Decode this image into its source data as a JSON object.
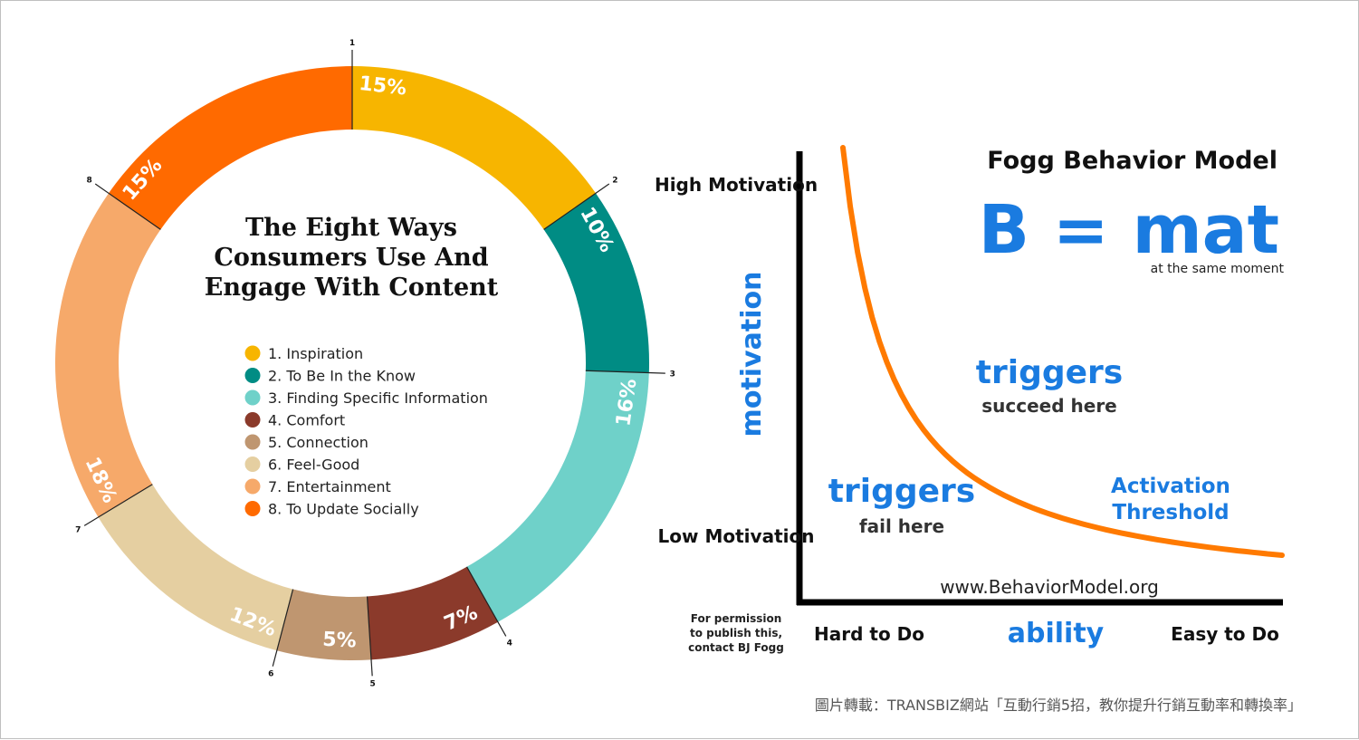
{
  "chart_data": [
    {
      "type": "pie",
      "variant": "donut",
      "title": "The Eight Ways Consumers Use And Engage With Content",
      "title_lines": [
        "The Eight Ways",
        "Consumers Use And",
        "Engage With Content"
      ],
      "categories": [
        "1. Inspiration",
        "2. To Be In the Know",
        "3. Finding Specific Information",
        "4. Comfort",
        "5. Connection",
        "6. Feel-Good",
        "7. Entertainment",
        "8. To Update Socially"
      ],
      "segment_numbers": [
        "1",
        "2",
        "3",
        "4",
        "5",
        "6",
        "7",
        "8"
      ],
      "values": [
        15,
        10,
        16,
        7,
        5,
        12,
        18,
        15
      ],
      "value_labels": [
        "15%",
        "10%",
        "16%",
        "7%",
        "5%",
        "12%",
        "18%",
        "15%"
      ],
      "colors": [
        "#F7B500",
        "#008C84",
        "#6FD1C9",
        "#8B3A2B",
        "#BF9670",
        "#E5CFA1",
        "#F6A96A",
        "#FF6A00"
      ],
      "legend_placement": "center"
    },
    {
      "type": "line",
      "title": "Fogg Behavior Model",
      "formula": "B = mat",
      "formula_note": "at the same moment",
      "xlabel": "ability",
      "ylabel": "motivation",
      "x_ticks": [
        "Hard to Do",
        "Easy to Do"
      ],
      "y_ticks": [
        "High Motivation",
        "Low Motivation"
      ],
      "series_color": "#FF7A00",
      "annotations": {
        "above": {
          "word": "triggers",
          "note": "succeed here"
        },
        "below": {
          "word": "triggers",
          "note": "fail here"
        },
        "curve_label": [
          "Activation",
          "Threshold"
        ],
        "url": "www.BehaviorModel.org",
        "permission": [
          "For permission",
          "to publish this,",
          "contact BJ Fogg"
        ]
      },
      "blue": "#1A7BE0"
    }
  ],
  "caption": "圖片轉載：TRANSBIZ網站「互動行銷5招，教你提升行銷互動率和轉換率」"
}
